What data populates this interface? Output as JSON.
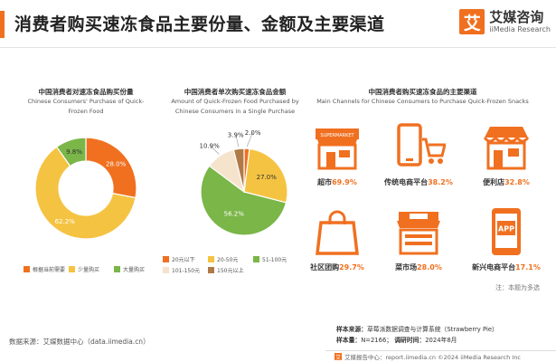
{
  "header": {
    "title": "消费者购买速冻食品主要份量、金额及主要渠道",
    "logo_mark": "艾",
    "logo_cn": "艾媒咨询",
    "logo_en": "iiMedia Research"
  },
  "colors": {
    "accent": "#f07020",
    "yellow": "#f5c342",
    "green": "#7ab648",
    "beige": "#f5e3cc",
    "brown": "#b07a48",
    "grey": "#c8c8c8"
  },
  "chart_data": [
    {
      "type": "pie",
      "donut": true,
      "title_cn": "中国消费者对速冻食品购买份量",
      "title_en": "Chinese Consumers' Purchase of Quick-Frozen Food",
      "categories": [
        "根据当前需要",
        "少量购买",
        "大量购买"
      ],
      "values": [
        28.0,
        62.2,
        9.8
      ],
      "labels": [
        "28.0%",
        "62.2%",
        "9.8%"
      ],
      "colors": [
        "#f07020",
        "#f5c342",
        "#7ab648"
      ],
      "legend": "bottom"
    },
    {
      "type": "pie",
      "title_cn": "中国消费者单次购买速冻食品金额",
      "title_en": "Amount of Quick-Frozen Food Purchased by Chinese Consumers in a Single Purchase",
      "categories": [
        "20元以下",
        "20-50元",
        "51-100元",
        "101-150元",
        "150元以上"
      ],
      "values": [
        2.0,
        27.0,
        56.2,
        10.9,
        3.9
      ],
      "labels": [
        "2.0%",
        "27.0%",
        "56.2%",
        "10.9%",
        "3.9%"
      ],
      "colors": [
        "#f07020",
        "#f5c342",
        "#7ab648",
        "#f5e3cc",
        "#b07a48"
      ],
      "legend": "bottom"
    },
    {
      "type": "table",
      "title_cn": "中国消费者购买速冻食品的主要渠道",
      "title_en": "Main Channels for Chinese Consumers to Purchase Quick-Frozen Snacks",
      "rows": [
        {
          "channel": "超市",
          "value": "69.9%",
          "icon": "supermarket-icon"
        },
        {
          "channel": "传统电商平台",
          "value": "38.2%",
          "icon": "phone-cart-icon"
        },
        {
          "channel": "便利店",
          "value": "32.8%",
          "icon": "convenience-store-icon"
        },
        {
          "channel": "社区团购",
          "value": "29.7%",
          "icon": "shopping-bag-icon"
        },
        {
          "channel": "菜市场",
          "value": "28.0%",
          "icon": "market-icon"
        },
        {
          "channel": "新兴电商平台",
          "value": "17.1%",
          "icon": "app-phone-icon"
        }
      ]
    }
  ],
  "channel_sign_text": "SUPERMARKET",
  "app_icon_text": "APP",
  "note": "注：本题为多选",
  "source": "数据来源：艾媒数据中心（data.iimedia.cn）",
  "sample": {
    "source_label": "样本来源：",
    "source_value": "草莓派数据调查与计算系统（Strawberry Pie）",
    "size_label": "样本量：",
    "size_value": "N=2166；",
    "time_label": "调研时间：",
    "time_value": "2024年8月"
  },
  "footer": {
    "mark": "艾",
    "text": "艾媒报告中心：report.iimedia.cn  ©2024  iiMedia Research  Inc"
  }
}
